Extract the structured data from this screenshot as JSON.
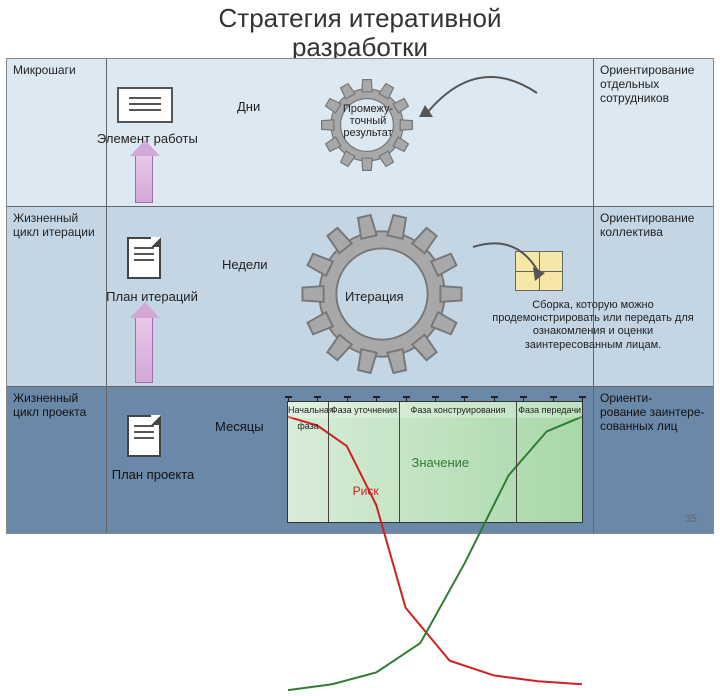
{
  "title_line1": "Стратегия итеративной",
  "title_line2": "разработки",
  "page_number": "35",
  "colors": {
    "row1_bg": "#dce8f2",
    "row2_bg": "#c4d5e3",
    "row3_bg": "#6a89a8",
    "gear": "#a8a8a8",
    "gear_stroke": "#777",
    "arrow": "#d3a8d8",
    "risk_line": "#cc2222",
    "value_line": "#2e7d32",
    "phase_bg_left": "#d8ecd8",
    "phase_bg_right": "#a8d8a8"
  },
  "rows": {
    "r1": {
      "left_label": "Микрошаги",
      "right_label": "Ориентирование отдельных сотрудников",
      "time": "Дни",
      "item": "Элемент работы",
      "gear_label": "Промежу-\nточный\nрезультат"
    },
    "r2": {
      "left_label": "Жизненный цикл итерации",
      "right_label": "Ориентирование коллектива",
      "time": "Недели",
      "item": "План итераций",
      "gear_label": "Итерация",
      "assembly": "Сборка, которую можно продемонстрировать или передать для ознакомления и оценки заинтересованным лицам."
    },
    "r3": {
      "left_label": "Жизненный цикл проекта",
      "right_label": "Ориенти-\nрование заинтере-\nсованных лиц",
      "time": "Месяцы",
      "item": "План проекта"
    }
  },
  "chart": {
    "phases": [
      "Начальная фаза",
      "Фаза уточнения",
      "Фаза конструирования",
      "Фаза передачи"
    ],
    "phase_widths_pct": [
      14,
      24,
      40,
      22
    ],
    "ticks": 10,
    "labels": {
      "risk": "Риск",
      "value": "Значение"
    },
    "risk_curve": [
      [
        0,
        5
      ],
      [
        10,
        8
      ],
      [
        20,
        15
      ],
      [
        30,
        35
      ],
      [
        40,
        70
      ],
      [
        55,
        88
      ],
      [
        70,
        93
      ],
      [
        85,
        95
      ],
      [
        100,
        96
      ]
    ],
    "value_curve": [
      [
        0,
        98
      ],
      [
        15,
        96
      ],
      [
        30,
        92
      ],
      [
        45,
        82
      ],
      [
        60,
        55
      ],
      [
        75,
        25
      ],
      [
        88,
        10
      ],
      [
        100,
        5
      ]
    ]
  }
}
